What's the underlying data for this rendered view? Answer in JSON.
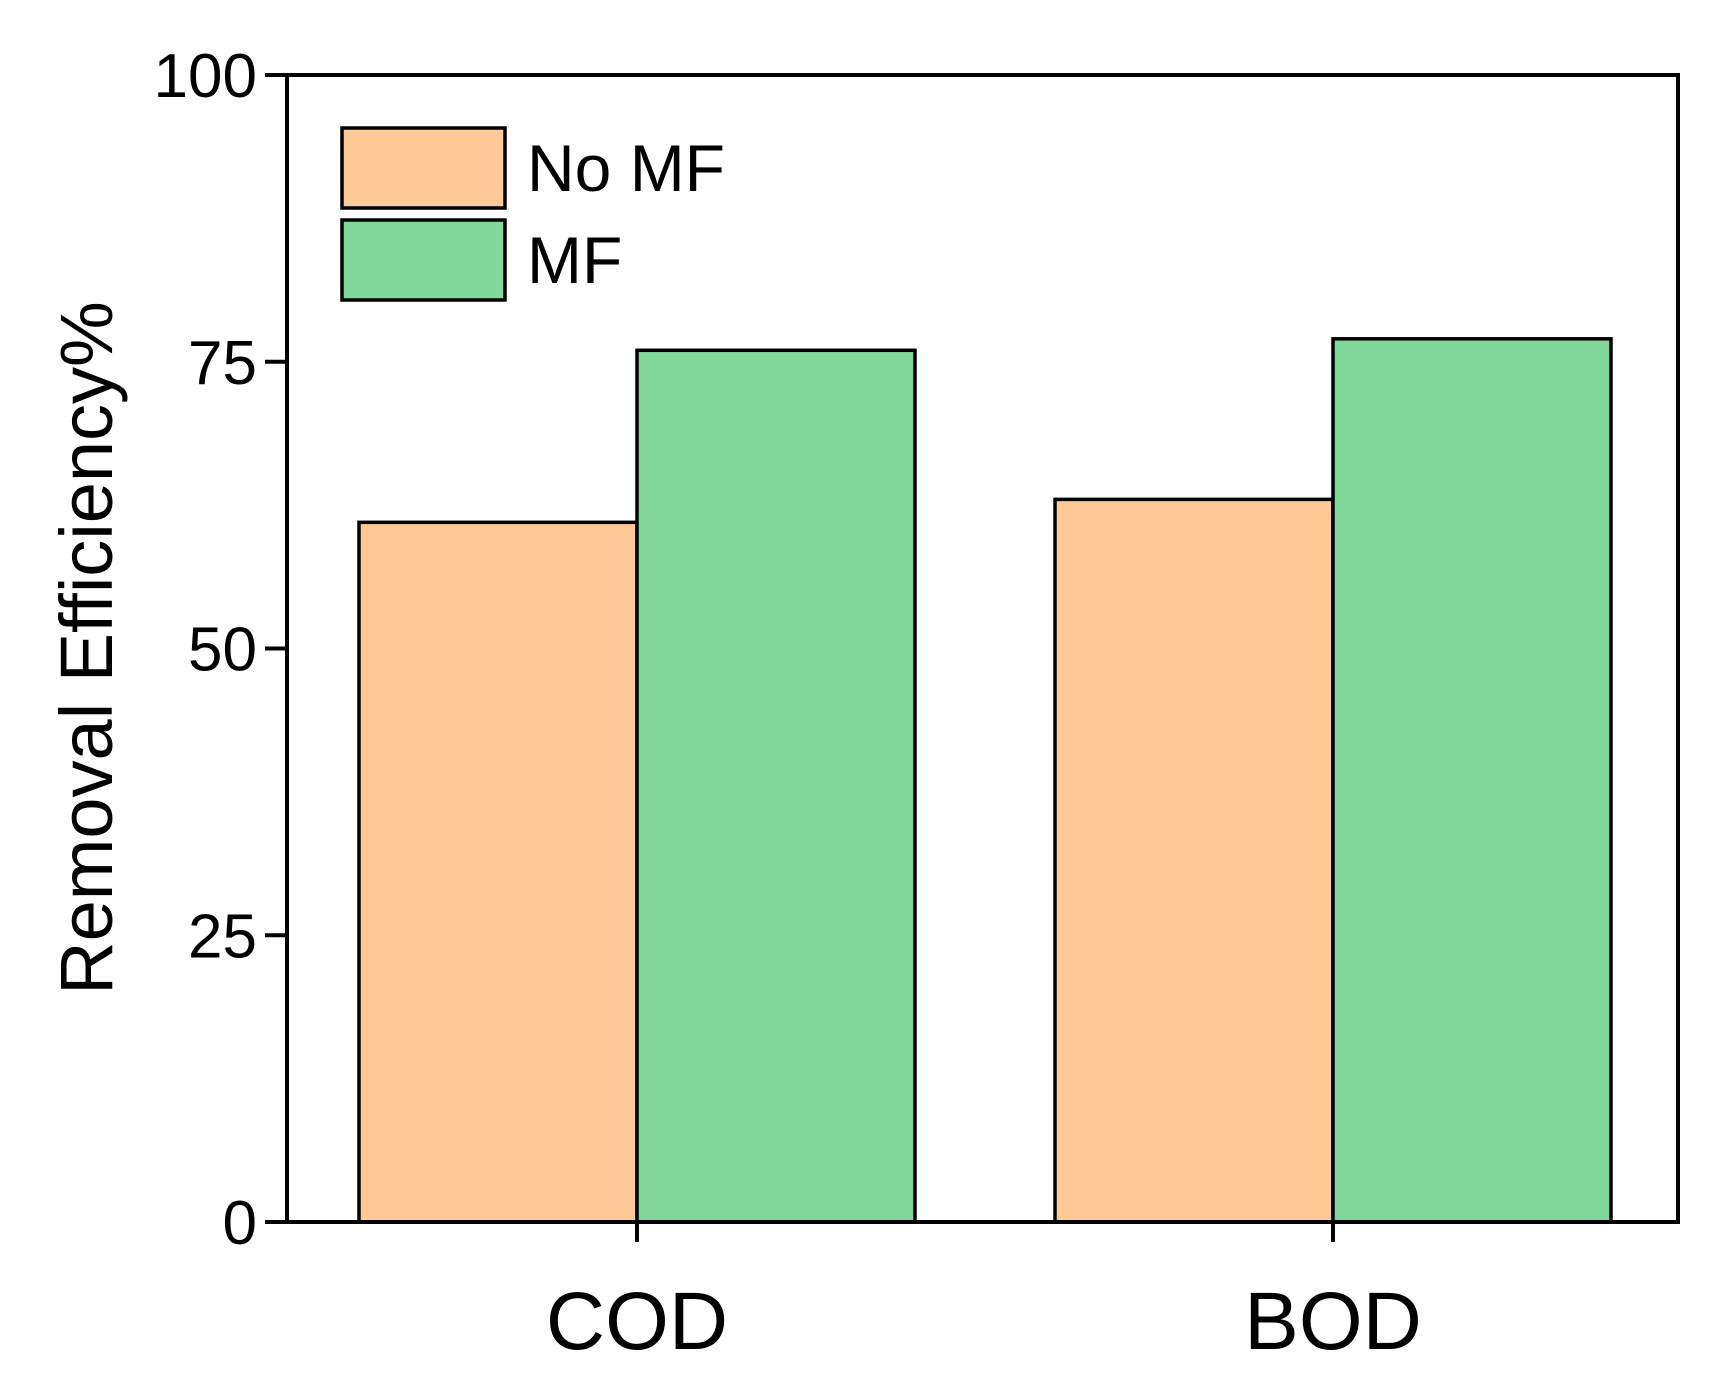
{
  "chart_data": {
    "type": "bar",
    "title": "",
    "xlabel": "",
    "ylabel": "Removal Efficiency%",
    "categories": [
      "COD",
      "BOD"
    ],
    "series": [
      {
        "name": "No MF",
        "color": "#FFC897",
        "values": [
          61,
          63
        ]
      },
      {
        "name": "MF",
        "color": "#80D89A",
        "values": [
          76,
          77
        ]
      }
    ],
    "ylim": [
      0,
      100
    ],
    "yticks": [
      0,
      25,
      50,
      75,
      100
    ],
    "ytick_labels": [
      "0",
      "25",
      "50",
      "75",
      "100"
    ],
    "grid": false,
    "legend_position": "top-left"
  }
}
